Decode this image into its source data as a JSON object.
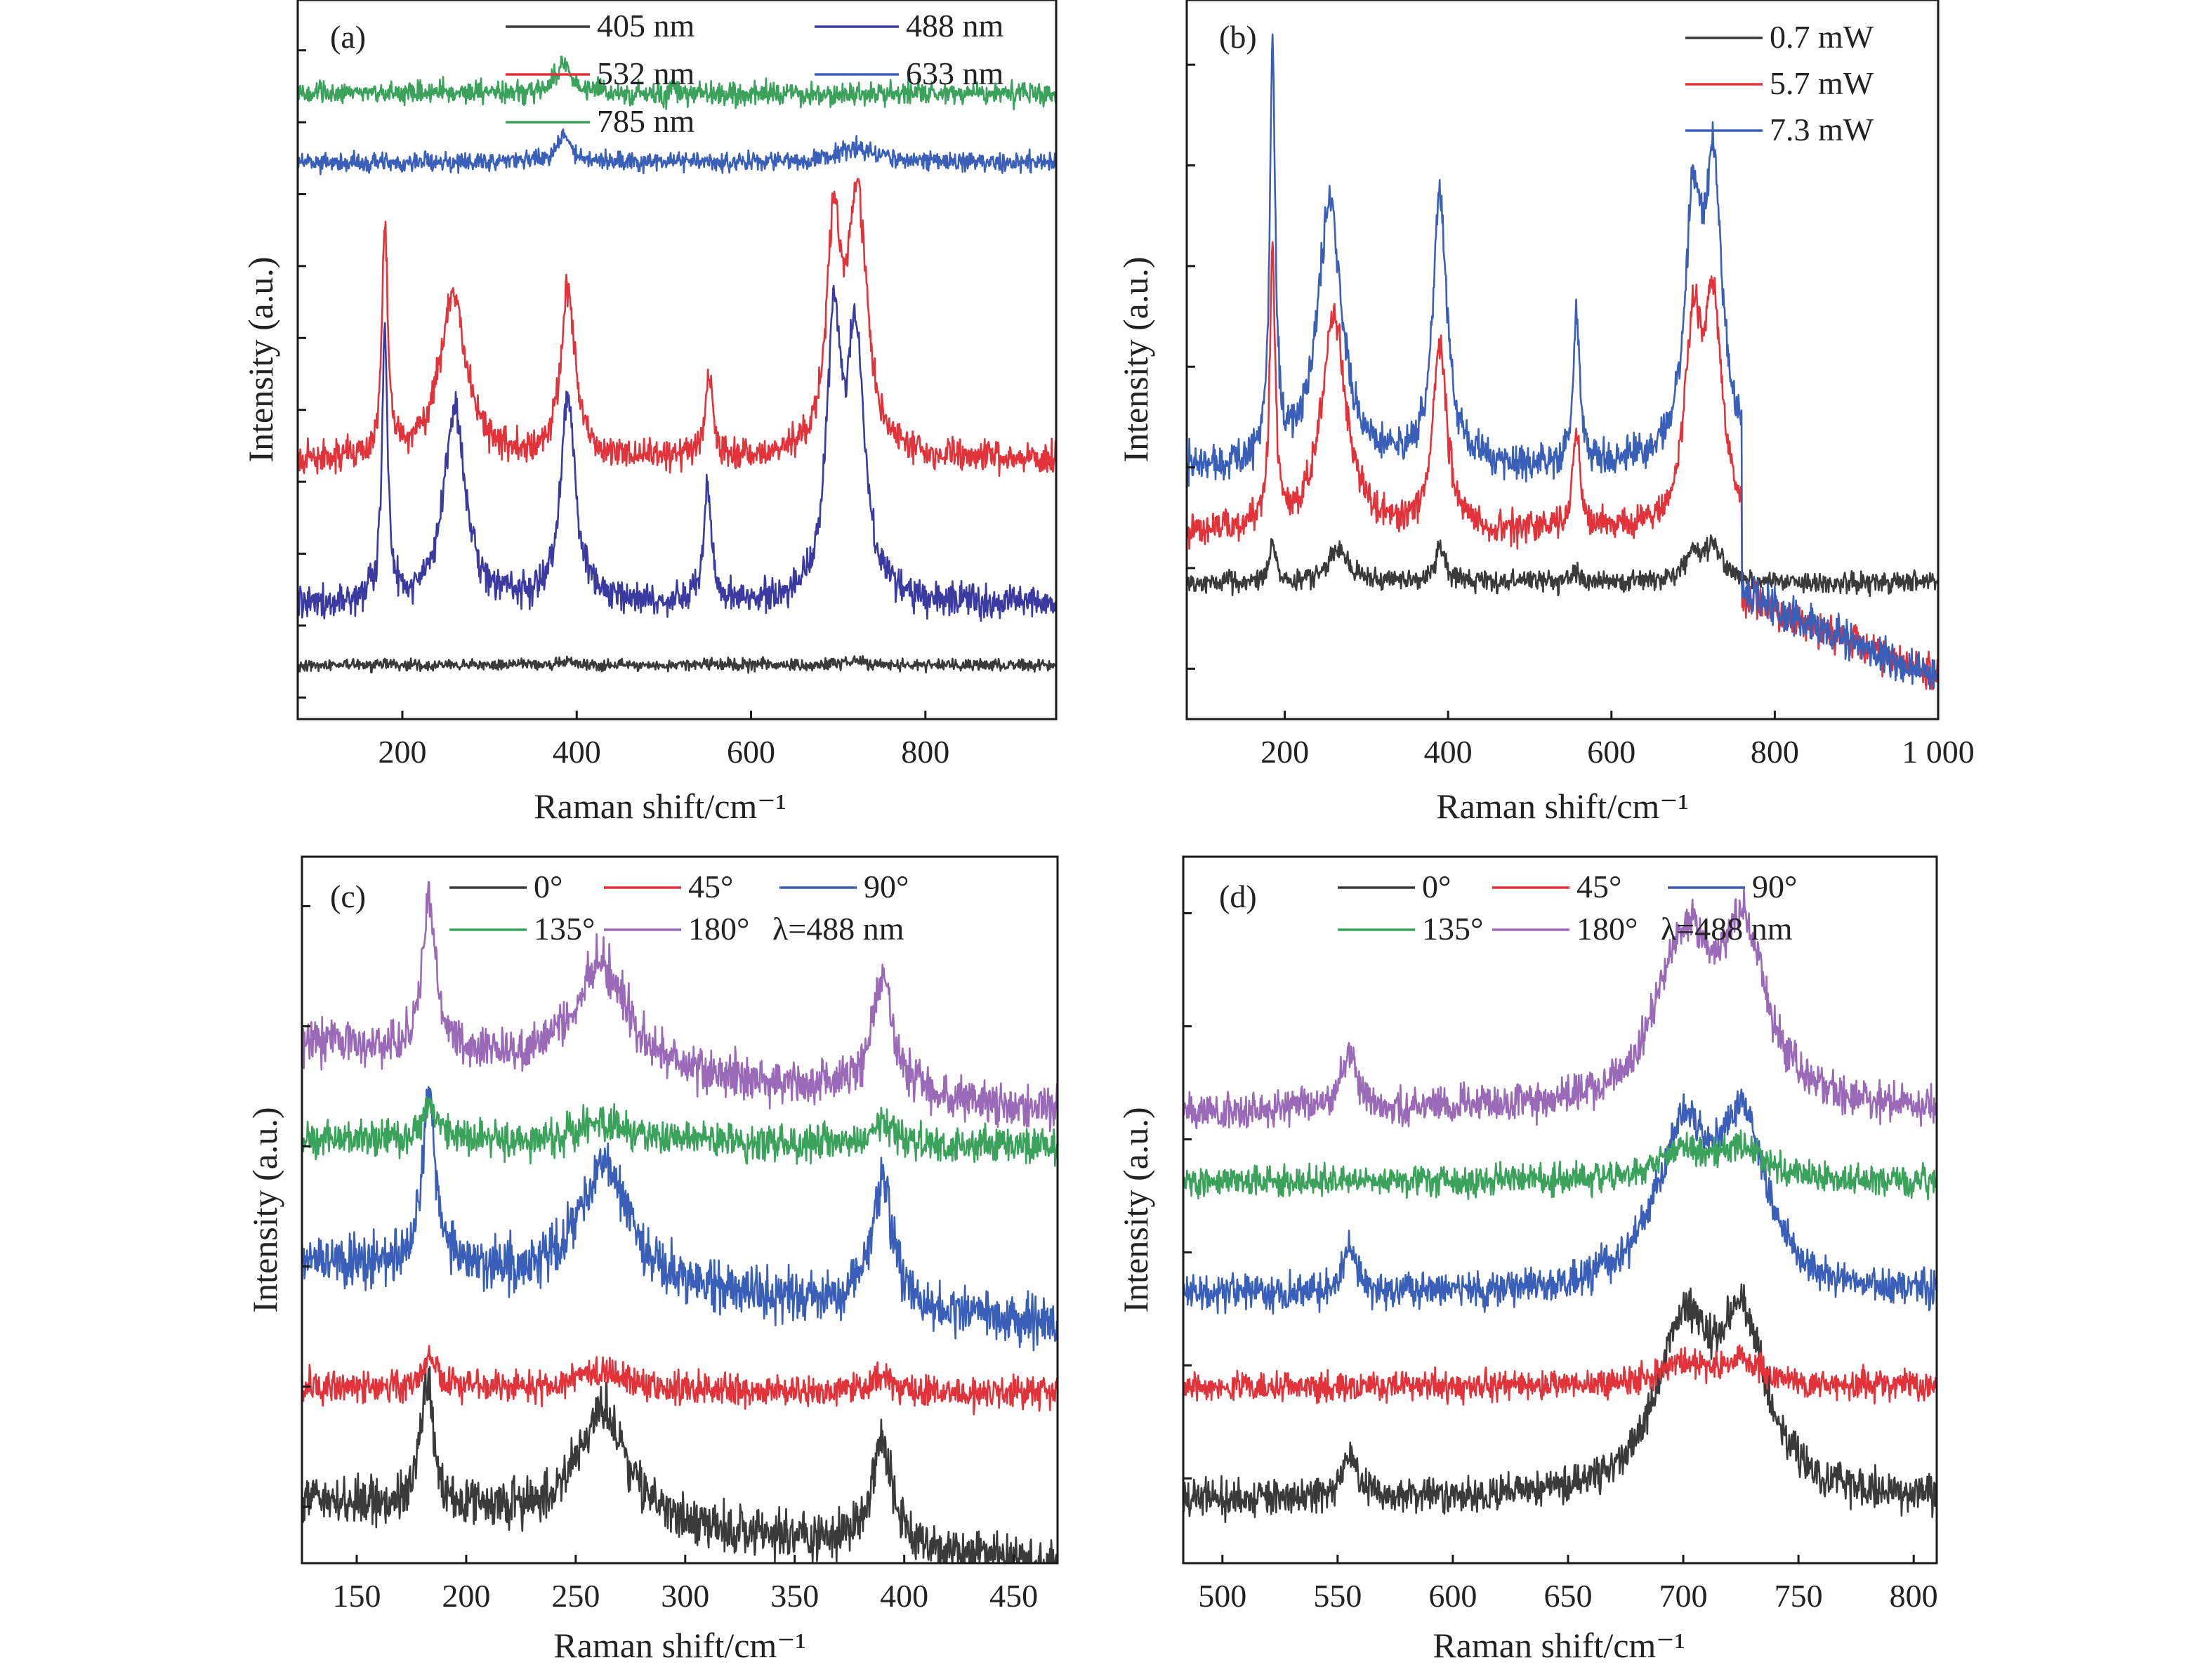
{
  "colors": {
    "black": "#3a3a3a",
    "red": "#e2323a",
    "blue": "#3a5fb8",
    "green": "#3aa25a",
    "purple": "#9a6ab8",
    "indigo": "#3a3aa0"
  },
  "chart_data": [
    {
      "type": "line",
      "panel_label": "(a)",
      "xlabel": "Raman shift/cm⁻¹",
      "ylabel": "Intensity (a.u.)",
      "xlim": [
        80,
        950
      ],
      "ylim": [
        0,
        10
      ],
      "xticks": [
        {
          "value": 200,
          "label": "200"
        },
        {
          "value": 400,
          "label": "400"
        },
        {
          "value": 600,
          "label": "600"
        },
        {
          "value": 800,
          "label": "800"
        }
      ],
      "y_ticks": [
        0.3,
        1.3,
        2.3,
        3.3,
        4.3,
        5.3,
        6.3,
        7.3,
        8.3,
        9.3
      ],
      "legend_rows": [
        [
          "405 nm",
          "488 nm"
        ],
        [
          "532 nm",
          "633 nm"
        ],
        [
          "785 nm"
        ]
      ],
      "series": [
        {
          "name": "405 nm",
          "color": "black",
          "baseline": 0.75,
          "noise": 0.05,
          "peaks": [
            [
              180,
              0.05,
              5
            ],
            [
              390,
              0.05,
              10
            ],
            [
              720,
              0.05,
              20
            ]
          ]
        },
        {
          "name": "488 nm",
          "color": "indigo",
          "baseline": 1.6,
          "noise": 0.14,
          "peaks": [
            [
              180,
              3.7,
              4
            ],
            [
              260,
              2.7,
              15
            ],
            [
              390,
              2.9,
              10
            ],
            [
              550,
              1.6,
              5
            ],
            [
              695,
              3.6,
              10
            ],
            [
              720,
              3.5,
              12
            ]
          ]
        },
        {
          "name": "532 nm",
          "color": "red",
          "baseline": 3.6,
          "noise": 0.14,
          "peaks": [
            [
              180,
              3.2,
              4
            ],
            [
              258,
              2.3,
              18
            ],
            [
              390,
              2.3,
              10
            ],
            [
              552,
              1.2,
              5
            ],
            [
              695,
              3.0,
              10
            ],
            [
              722,
              3.5,
              13
            ]
          ]
        },
        {
          "name": "633 nm",
          "color": "blue",
          "baseline": 7.75,
          "noise": 0.08,
          "peaks": [
            [
              385,
              0.35,
              10
            ],
            [
              720,
              0.2,
              25
            ]
          ]
        },
        {
          "name": "785 nm",
          "color": "green",
          "baseline": 8.7,
          "noise": 0.1,
          "peaks": [
            [
              385,
              0.45,
              10
            ]
          ]
        }
      ]
    },
    {
      "type": "line",
      "panel_label": "(b)",
      "xlabel": "Raman shift/cm⁻¹",
      "ylabel": "Intensity (a.u.)",
      "xlim": [
        80,
        1000
      ],
      "ylim": [
        0,
        10
      ],
      "xticks": [
        {
          "value": 200,
          "label": "200"
        },
        {
          "value": 400,
          "label": "400"
        },
        {
          "value": 600,
          "label": "600"
        },
        {
          "value": 800,
          "label": "800"
        },
        {
          "value": 1000,
          "label": "1 000"
        }
      ],
      "y_ticks": [
        0.7,
        2.1,
        3.5,
        4.9,
        6.3,
        7.7,
        9.1
      ],
      "legend_rows": [
        [
          "0.7 mW"
        ],
        [
          "5.7 mW"
        ],
        [
          "7.3 mW"
        ]
      ],
      "series": [
        {
          "name": "0.7 mW",
          "color": "black",
          "baseline": 1.9,
          "noise": 0.09,
          "peaks": [
            [
              185,
              0.6,
              4
            ],
            [
              265,
              0.45,
              15
            ],
            [
              390,
              0.45,
              8
            ],
            [
              555,
              0.2,
              4
            ],
            [
              700,
              0.4,
              12
            ],
            [
              725,
              0.5,
              12
            ]
          ]
        },
        {
          "name": "5.7 mW",
          "color": "red",
          "baseline": 2.6,
          "noise": 0.14,
          "peaks": [
            [
              185,
              3.8,
              4
            ],
            [
              260,
              3.0,
              18
            ],
            [
              390,
              2.6,
              10
            ],
            [
              557,
              1.4,
              5
            ],
            [
              700,
              2.6,
              12
            ],
            [
              725,
              3.0,
              13
            ]
          ],
          "cutoff": 760,
          "tail_start": 1.7,
          "tail_end": 0.6
        },
        {
          "name": "7.3 mW",
          "color": "blue",
          "baseline": 3.5,
          "noise": 0.16,
          "peaks": [
            [
              185,
              5.6,
              4
            ],
            [
              255,
              3.6,
              18
            ],
            [
              390,
              3.8,
              10
            ],
            [
              557,
              2.0,
              5
            ],
            [
              700,
              3.3,
              12
            ],
            [
              725,
              3.8,
              13
            ]
          ],
          "cutoff": 760,
          "tail_start": 1.75,
          "tail_end": 0.55
        }
      ]
    },
    {
      "type": "line",
      "panel_label": "(c)",
      "xlabel": "Raman shift/cm⁻¹",
      "ylabel": "Intensity (a.u.)",
      "xlim": [
        125,
        470
      ],
      "ylim": [
        0,
        10
      ],
      "xticks": [
        {
          "value": 150,
          "label": "150"
        },
        {
          "value": 200,
          "label": "200"
        },
        {
          "value": 250,
          "label": "250"
        },
        {
          "value": 300,
          "label": "300"
        },
        {
          "value": 350,
          "label": "350"
        },
        {
          "value": 400,
          "label": "400"
        },
        {
          "value": 450,
          "label": "450"
        }
      ],
      "y_ticks": [
        0.8,
        2.5,
        4.2,
        5.9,
        7.6,
        9.3
      ],
      "legend_rows": [
        [
          "0°",
          "45°",
          "90°"
        ],
        [
          "135°",
          "180°",
          "λ=488 nm"
        ]
      ],
      "series": [
        {
          "name": "0°",
          "color": "black",
          "baseline": 0.9,
          "slope": -0.9,
          "noise": 0.2,
          "peaks": [
            [
              182,
              1.8,
              3.5
            ],
            [
              262,
              1.6,
              14
            ],
            [
              390,
              1.5,
              6
            ]
          ]
        },
        {
          "name": "45°",
          "color": "red",
          "baseline": 2.5,
          "slope": -0.1,
          "noise": 0.14,
          "peaks": [
            [
              183,
              0.4,
              3.5
            ],
            [
              262,
              0.25,
              14
            ],
            [
              390,
              0.25,
              6
            ]
          ]
        },
        {
          "name": "90°",
          "color": "blue",
          "baseline": 4.3,
          "slope": -0.9,
          "noise": 0.22,
          "peaks": [
            [
              183,
              2.5,
              3.5
            ],
            [
              263,
              1.7,
              14
            ],
            [
              390,
              1.8,
              6
            ]
          ]
        },
        {
          "name": "135°",
          "color": "green",
          "baseline": 6.0,
          "slope": -0.1,
          "noise": 0.16,
          "peaks": [
            [
              183,
              0.5,
              3.5
            ],
            [
              262,
              0.3,
              14
            ],
            [
              390,
              0.3,
              6
            ]
          ]
        },
        {
          "name": "180°",
          "color": "purple",
          "baseline": 7.4,
          "slope": -1.0,
          "noise": 0.2,
          "peaks": [
            [
              183,
              2.2,
              3.5
            ],
            [
              262,
              1.5,
              14
            ],
            [
              390,
              1.6,
              6
            ]
          ]
        }
      ]
    },
    {
      "type": "line",
      "panel_label": "(d)",
      "xlabel": "Raman shift/cm⁻¹",
      "ylabel": "Intensity (a.u.)",
      "xlim": [
        483,
        810
      ],
      "ylim": [
        0,
        10
      ],
      "xticks": [
        {
          "value": 500,
          "label": "500"
        },
        {
          "value": 550,
          "label": "550"
        },
        {
          "value": 600,
          "label": "600"
        },
        {
          "value": 650,
          "label": "650"
        },
        {
          "value": 700,
          "label": "700"
        },
        {
          "value": 750,
          "label": "750"
        },
        {
          "value": 800,
          "label": "800"
        }
      ],
      "y_ticks": [
        1.2,
        2.8,
        4.4,
        6.0,
        7.6,
        9.2
      ],
      "legend_rows": [
        [
          "0°",
          "45°",
          "90°"
        ],
        [
          "135°",
          "180°",
          "λ=488 nm"
        ]
      ],
      "series": [
        {
          "name": "0°",
          "color": "black",
          "baseline": 0.9,
          "slope": 0,
          "noise": 0.16,
          "peaks": [
            [
              555,
              0.6,
              4
            ],
            [
              700,
              2.3,
              14
            ],
            [
              726,
              2.3,
              12
            ]
          ]
        },
        {
          "name": "45°",
          "color": "red",
          "baseline": 2.5,
          "slope": 0,
          "noise": 0.13,
          "peaks": [
            [
              700,
              0.3,
              14
            ],
            [
              726,
              0.3,
              12
            ]
          ]
        },
        {
          "name": "90°",
          "color": "blue",
          "baseline": 3.8,
          "slope": 0,
          "noise": 0.16,
          "peaks": [
            [
              555,
              0.6,
              4
            ],
            [
              700,
              2.2,
              14
            ],
            [
              726,
              2.2,
              12
            ]
          ]
        },
        {
          "name": "135°",
          "color": "green",
          "baseline": 5.4,
          "slope": 0,
          "noise": 0.13,
          "peaks": [
            [
              700,
              0.4,
              14
            ],
            [
              726,
              0.4,
              12
            ]
          ]
        },
        {
          "name": "180°",
          "color": "purple",
          "baseline": 6.4,
          "slope": 0,
          "noise": 0.16,
          "peaks": [
            [
              555,
              0.8,
              4
            ],
            [
              700,
              2.3,
              14
            ],
            [
              726,
              2.3,
              12
            ]
          ]
        }
      ]
    }
  ]
}
